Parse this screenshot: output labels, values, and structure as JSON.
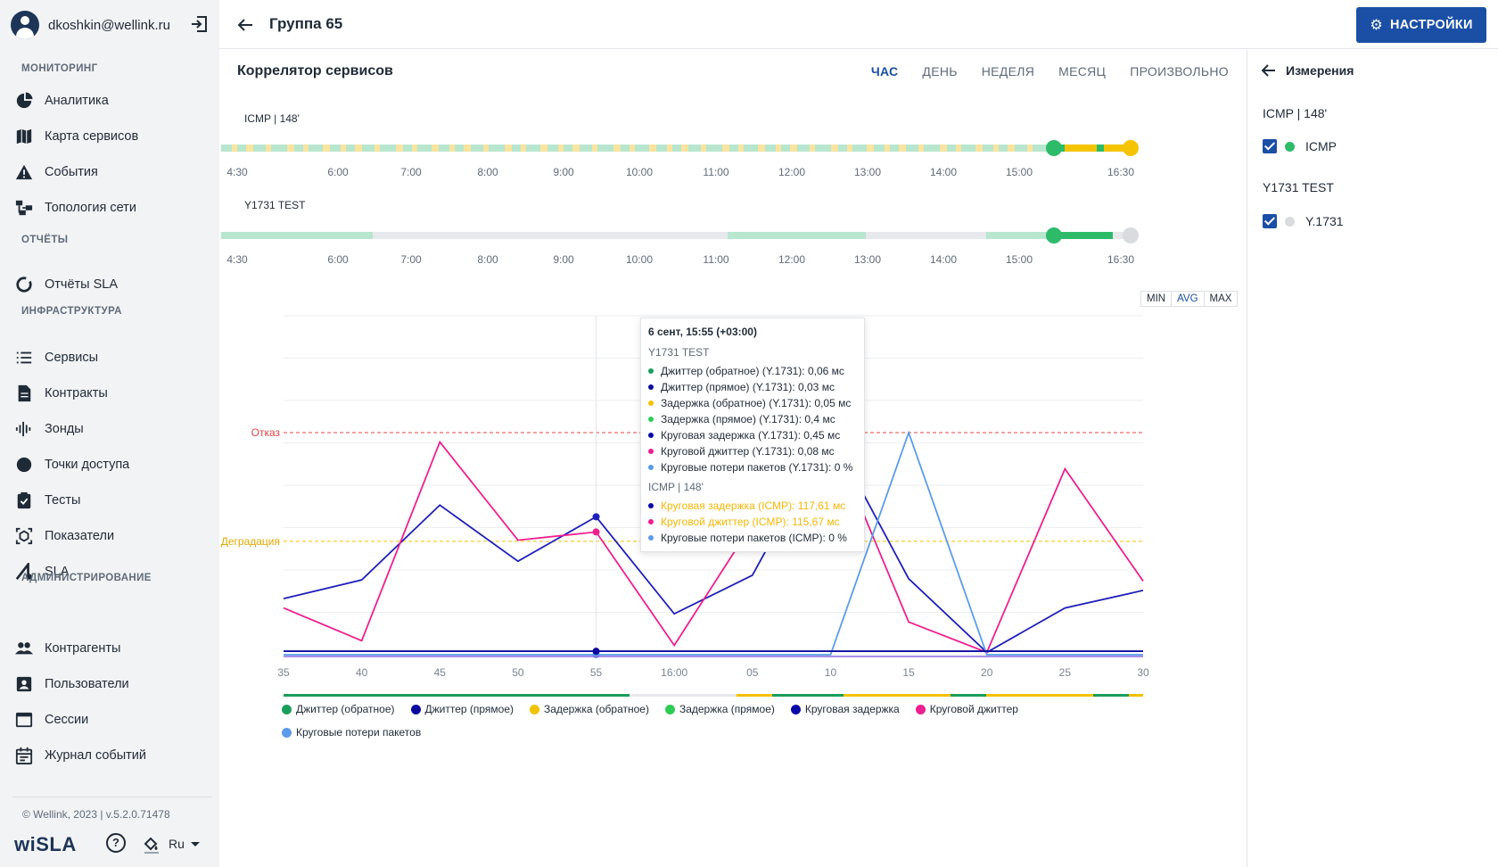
{
  "user": {
    "email": "dkoshkin@wellink.ru"
  },
  "sidebar": {
    "sections": [
      {
        "title": "МОНИТОРИНГ",
        "items": [
          {
            "label": "Аналитика",
            "icon": "pie-chart-icon"
          },
          {
            "label": "Карта сервисов",
            "icon": "map-icon"
          },
          {
            "label": "События",
            "icon": "warning-icon"
          },
          {
            "label": "Топология сети",
            "icon": "topology-icon"
          }
        ]
      },
      {
        "title": "ОТЧЁТЫ",
        "items": [
          {
            "label": "Отчёты SLA",
            "icon": "report-ring-icon"
          }
        ]
      },
      {
        "title": "ИНФРАСТРУКТУРА",
        "items": [
          {
            "label": "Сервисы",
            "icon": "list-icon"
          },
          {
            "label": "Контракты",
            "icon": "document-icon"
          },
          {
            "label": "Зонды",
            "icon": "probe-icon"
          },
          {
            "label": "Точки доступа",
            "icon": "circle-icon"
          },
          {
            "label": "Тесты",
            "icon": "clipboard-check-icon"
          },
          {
            "label": "Показатели",
            "icon": "metrics-icon"
          },
          {
            "label": "SLA",
            "icon": "sla-icon"
          }
        ]
      },
      {
        "title": "АДМИНИСТРИРОВАНИЕ",
        "items": [
          {
            "label": "Контрагенты",
            "icon": "people-icon"
          },
          {
            "label": "Пользователи",
            "icon": "user-card-icon"
          },
          {
            "label": "Сессии",
            "icon": "window-icon"
          },
          {
            "label": "Журнал событий",
            "icon": "calendar-icon"
          }
        ]
      }
    ],
    "copyright": "© Wellink, 2023 | v.5.2.0.71478",
    "brand": "wiSLA",
    "language": "Ru"
  },
  "header": {
    "title": "Группа 65",
    "settings_label": "НАСТРОЙКИ"
  },
  "main": {
    "title": "Коррелятор сервисов",
    "periods": [
      "ЧАС",
      "ДЕНЬ",
      "НЕДЕЛЯ",
      "МЕСЯЦ",
      "ПРОИЗВОЛЬНО"
    ],
    "active_period": "ЧАС",
    "timelines": [
      {
        "label": "ICMP | 148'",
        "ticks": [
          "4:30",
          "6:00",
          "7:00",
          "8:00",
          "9:00",
          "10:00",
          "11:00",
          "12:00",
          "13:00",
          "14:00",
          "15:00",
          "16:30"
        ]
      },
      {
        "label": "Y1731 TEST",
        "ticks": [
          "4:30",
          "6:00",
          "7:00",
          "8:00",
          "9:00",
          "10:00",
          "11:00",
          "12:00",
          "13:00",
          "14:00",
          "15:00",
          "16:30"
        ]
      }
    ],
    "agg_buttons": [
      "MIN",
      "AVG",
      "MAX"
    ],
    "agg_selected": "AVG",
    "threshold_labels": {
      "fail": "Отказ",
      "degradation": "Деградация"
    }
  },
  "tooltip": {
    "title": "6 сент, 15:55 (+03:00)",
    "groups": [
      {
        "name": "Y1731 TEST",
        "rows": [
          {
            "color": "#1a9e5c",
            "text": "Джиттер (обратное) (Y.1731): 0,06 мс"
          },
          {
            "color": "#0a0a9e",
            "text": "Джиттер (прямое) (Y.1731): 0,03 мс"
          },
          {
            "color": "#f2c200",
            "text": "Задержка (обратное) (Y.1731): 0,05 мс"
          },
          {
            "color": "#2ecc55",
            "text": "Задержка (прямое) (Y.1731): 0,4 мс"
          },
          {
            "color": "#0a0aa8",
            "text": "Круговая задержка (Y.1731): 0,45 мс"
          },
          {
            "color": "#ee1f8f",
            "text": "Круговой джиттер (Y.1731): 0,08 мс"
          },
          {
            "color": "#5b9bea",
            "text": "Круговые потери пакетов (Y.1731): 0 %"
          }
        ]
      },
      {
        "name": "ICMP | 148'",
        "rows": [
          {
            "color": "#0a0aa8",
            "text": "Круговая задержка (ICMP): 117,61 мс",
            "warn": true
          },
          {
            "color": "#ee1f8f",
            "text": "Круговой джиттер (ICMP): 115,67 мс",
            "warn": true
          },
          {
            "color": "#5b9bea",
            "text": "Круговые потери пакетов (ICMP): 0 %"
          }
        ]
      }
    ]
  },
  "legend": [
    {
      "label": "Джиттер (обратное)",
      "color": "#1a9e5c"
    },
    {
      "label": "Джиттер (прямое)",
      "color": "#0a0a9e"
    },
    {
      "label": "Задержка (обратное)",
      "color": "#f2c200"
    },
    {
      "label": "Задержка (прямое)",
      "color": "#2ecc55"
    },
    {
      "label": "Круговая задержка",
      "color": "#0a0aa8"
    },
    {
      "label": "Круговой джиттер",
      "color": "#ee1f8f"
    },
    {
      "label": "Круговые потери пакетов",
      "color": "#5b9bea"
    }
  ],
  "right_panel": {
    "title": "Измерения",
    "groups": [
      {
        "name": "ICMP | 148'",
        "item": "ICMP",
        "dot": "#2dbb6a",
        "checked": true
      },
      {
        "name": "Y1731 TEST",
        "item": "Y.1731",
        "dot": "#d9dbde",
        "checked": true
      }
    ]
  },
  "chart_data": {
    "type": "line",
    "categories": [
      "35",
      "40",
      "45",
      "50",
      "55",
      "16:00",
      "05",
      "10",
      "15",
      "20",
      "25",
      "30"
    ],
    "series": [
      {
        "name": "Круговая задержка",
        "color": "#1f1fb8",
        "values": [
          48,
          64,
          128,
          80,
          118,
          35,
          68,
          190,
          65,
          2,
          40,
          55
        ]
      },
      {
        "name": "Круговой джиттер",
        "color": "#ee1f8f",
        "values": [
          40,
          12,
          182,
          98,
          105,
          8,
          112,
          188,
          28,
          2,
          159,
          63
        ]
      },
      {
        "name": "Круговые потери пакетов",
        "color": "#5b9bea",
        "values": [
          0,
          0,
          0,
          0,
          0,
          0,
          0,
          0,
          190,
          0,
          0,
          0
        ]
      },
      {
        "name": "Круговая задержка (Y.1731)",
        "color": "#0a0a9e",
        "values": [
          3,
          3,
          3,
          3,
          3,
          3,
          3,
          3,
          3,
          3,
          3,
          3
        ]
      }
    ],
    "ylim": [
      0,
      290
    ],
    "thresholds": {
      "fail": 190,
      "degradation": 97
    },
    "grid": true,
    "legend": "bottom"
  }
}
